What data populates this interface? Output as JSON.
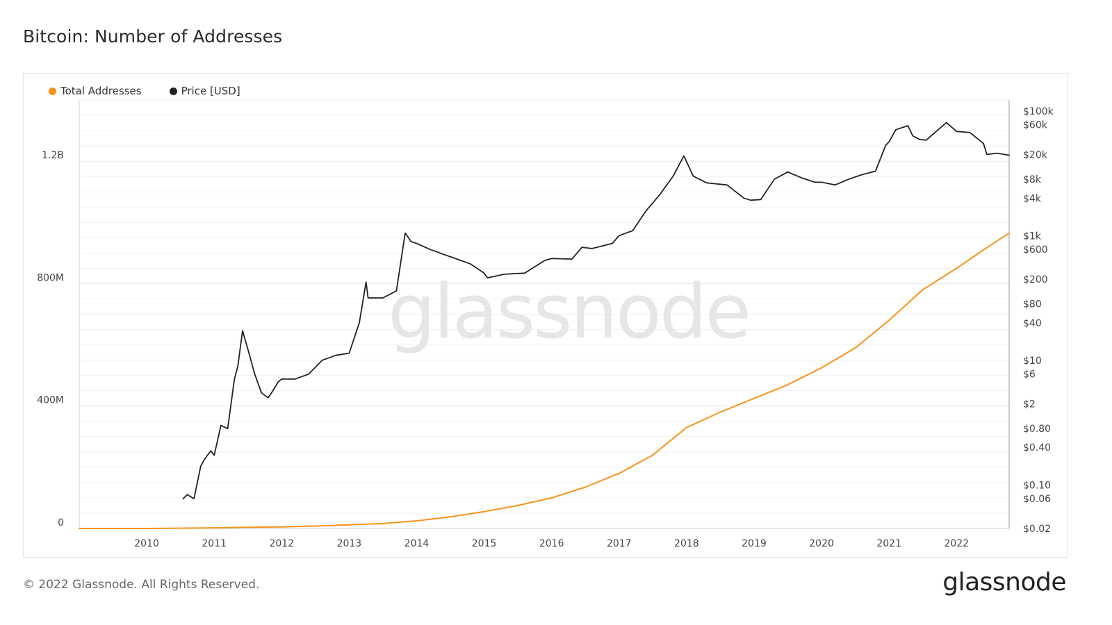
{
  "page": {
    "title": "Bitcoin: Number of Addresses",
    "footer": "© 2022 Glassnode. All Rights Reserved.",
    "brand": "glassnode",
    "watermark": "glassnode"
  },
  "colors": {
    "total_addresses": "#f7931a",
    "price": "#222222",
    "grid": "#e8e8e8",
    "axis": "#cfcfcf"
  },
  "chart_data": {
    "type": "line",
    "title": "Bitcoin: Number of Addresses",
    "legend_position": "top-left",
    "grid": true,
    "x_axis": {
      "ticks": [
        "2010",
        "2011",
        "2012",
        "2013",
        "2014",
        "2015",
        "2016",
        "2017",
        "2018",
        "2019",
        "2020",
        "2021",
        "2022"
      ],
      "range": [
        2009.0,
        2022.78
      ]
    },
    "y_left": {
      "ticks": [
        0,
        400000000,
        800000000,
        1200000000
      ],
      "tick_labels": [
        "0",
        "400M",
        "800M",
        "1.2B"
      ],
      "range": [
        0,
        1400000000
      ]
    },
    "y_right": {
      "scale": "log",
      "ticks": [
        0.02,
        0.06,
        0.1,
        0.4,
        0.8,
        2,
        6,
        10,
        40,
        80,
        200,
        600,
        1000,
        4000,
        8000,
        20000,
        60000,
        100000
      ],
      "tick_labels": [
        "$0.02",
        "$0.06",
        "$0.10",
        "$0.40",
        "$0.80",
        "$2",
        "$6",
        "$10",
        "$40",
        "$80",
        "$200",
        "$600",
        "$1k",
        "$4k",
        "$8k",
        "$20k",
        "$60k",
        "$100k"
      ],
      "range": [
        0.02,
        150000
      ]
    },
    "series": [
      {
        "name": "Total Addresses",
        "axis": "left",
        "x": [
          2009.0,
          2010.0,
          2011.0,
          2011.5,
          2012.0,
          2012.5,
          2013.0,
          2013.5,
          2014.0,
          2014.5,
          2015.0,
          2015.5,
          2016.0,
          2016.5,
          2017.0,
          2017.5,
          2018.0,
          2018.5,
          2019.0,
          2019.5,
          2020.0,
          2020.5,
          2021.0,
          2021.5,
          2022.0,
          2022.5,
          2022.78
        ],
        "values": [
          0,
          0,
          2000000,
          4000000,
          5000000,
          8000000,
          12000000,
          16000000,
          25000000,
          38000000,
          55000000,
          75000000,
          100000000,
          135000000,
          180000000,
          240000000,
          330000000,
          380000000,
          425000000,
          470000000,
          525000000,
          590000000,
          680000000,
          780000000,
          850000000,
          925000000,
          965000000
        ]
      },
      {
        "name": "Price [USD]",
        "axis": "right",
        "x": [
          2010.54,
          2010.6,
          2010.7,
          2010.8,
          2010.85,
          2010.9,
          2010.95,
          2011.0,
          2011.1,
          2011.2,
          2011.3,
          2011.35,
          2011.42,
          2011.44,
          2011.5,
          2011.6,
          2011.7,
          2011.8,
          2011.85,
          2011.95,
          2012.0,
          2012.2,
          2012.4,
          2012.6,
          2012.8,
          2013.0,
          2013.15,
          2013.25,
          2013.28,
          2013.35,
          2013.5,
          2013.7,
          2013.83,
          2013.92,
          2014.0,
          2014.2,
          2014.4,
          2014.6,
          2014.8,
          2015.0,
          2015.05,
          2015.3,
          2015.6,
          2015.9,
          2016.0,
          2016.3,
          2016.45,
          2016.6,
          2016.9,
          2017.0,
          2017.2,
          2017.4,
          2017.6,
          2017.8,
          2017.96,
          2018.1,
          2018.3,
          2018.6,
          2018.85,
          2018.95,
          2019.1,
          2019.3,
          2019.5,
          2019.7,
          2019.9,
          2020.0,
          2020.2,
          2020.4,
          2020.6,
          2020.8,
          2020.95,
          2021.0,
          2021.1,
          2021.28,
          2021.35,
          2021.45,
          2021.55,
          2021.7,
          2021.85,
          2022.0,
          2022.2,
          2022.4,
          2022.45,
          2022.6,
          2022.78
        ],
        "values": [
          0.06,
          0.07,
          0.06,
          0.2,
          0.25,
          0.3,
          0.35,
          0.3,
          0.9,
          0.8,
          5,
          8,
          30,
          25,
          15,
          6,
          3,
          2.5,
          3,
          4.5,
          5,
          5,
          6,
          10,
          12,
          13,
          40,
          180,
          100,
          100,
          100,
          130,
          1100,
          800,
          750,
          600,
          500,
          420,
          350,
          250,
          210,
          240,
          250,
          400,
          430,
          420,
          650,
          620,
          750,
          1000,
          1200,
          2500,
          4500,
          9000,
          19000,
          9000,
          7000,
          6500,
          4000,
          3700,
          3800,
          8000,
          10500,
          8500,
          7200,
          7200,
          6500,
          8000,
          9500,
          10800,
          28000,
          32000,
          50000,
          58000,
          40000,
          35000,
          34000,
          47000,
          65000,
          47000,
          45000,
          30000,
          20000,
          21000,
          19500
        ]
      }
    ]
  }
}
